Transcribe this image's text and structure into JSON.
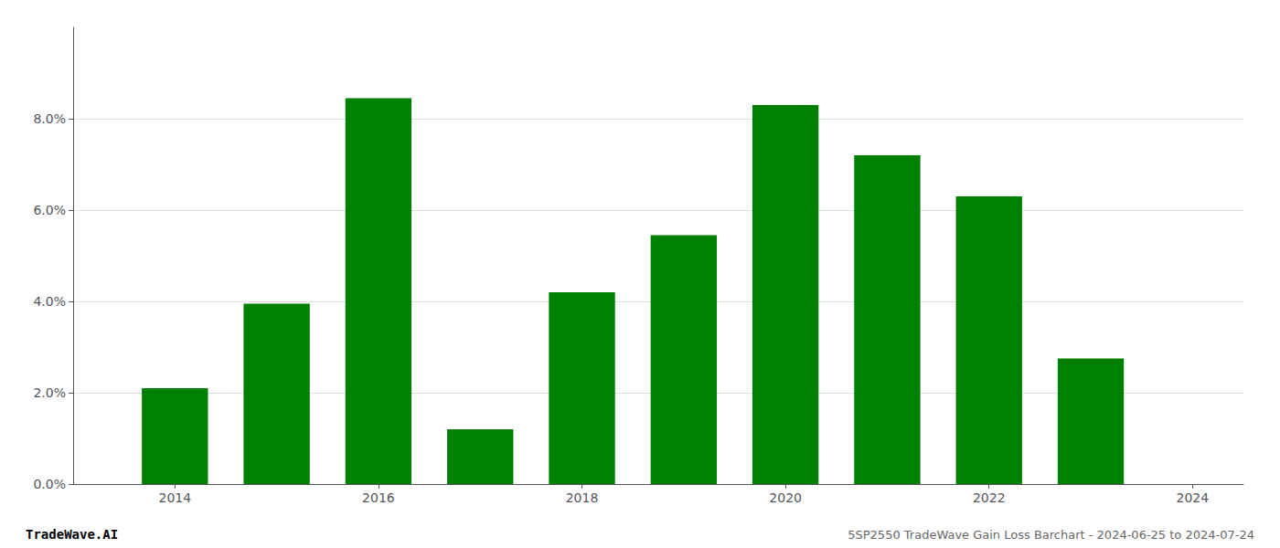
{
  "chart_data": {
    "type": "bar",
    "x": [
      2014,
      2015,
      2016,
      2017,
      2018,
      2019,
      2020,
      2021,
      2022,
      2023
    ],
    "values": [
      0.021,
      0.0395,
      0.0845,
      0.012,
      0.042,
      0.0545,
      0.083,
      0.072,
      0.063,
      0.0275
    ],
    "color": "#008000",
    "xlim": [
      2013.0,
      2024.5
    ],
    "xticks": [
      2014,
      2016,
      2018,
      2020,
      2022,
      2024
    ],
    "ylim": [
      0,
      0.1
    ],
    "yticks": [
      {
        "value": 0.0,
        "label": "0.0%"
      },
      {
        "value": 0.02,
        "label": "2.0%"
      },
      {
        "value": 0.04,
        "label": "4.0%"
      },
      {
        "value": 0.06,
        "label": "6.0%"
      },
      {
        "value": 0.08,
        "label": "8.0%"
      }
    ],
    "grid": true,
    "annotations": [
      "TradeWave.AI",
      "5SP2550 TradeWave Gain Loss Barchart - 2024-06-25 to 2024-07-24"
    ]
  }
}
